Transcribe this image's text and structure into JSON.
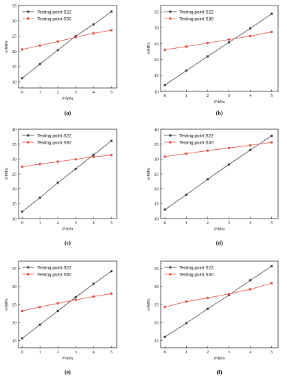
{
  "chart_data": [
    {
      "type": "line",
      "caption": "(a)",
      "xlabel_var": "P",
      "xlabel_unit": "/kPa",
      "ylabel_var": "σ",
      "ylabel_unit": "/MPa",
      "x": [
        0,
        1,
        2,
        3,
        4,
        5
      ],
      "xlim": [
        -0.2,
        5.3
      ],
      "ylim": [
        8,
        35
      ],
      "yticks": [
        10,
        15,
        20,
        25,
        30,
        35
      ],
      "legend_position": "top-left",
      "series": [
        {
          "name": "Testing point S22",
          "marker": "square",
          "color": "#333333",
          "values": [
            11.2,
            15.8,
            20.4,
            25.0,
            28.8,
            33.0
          ]
        },
        {
          "name": "Testing point S30",
          "marker": "circle",
          "color": "#e0453a",
          "values": [
            20.6,
            21.9,
            23.2,
            24.6,
            25.9,
            26.9
          ]
        }
      ]
    },
    {
      "type": "line",
      "caption": "(b)",
      "xlabel_var": "P",
      "xlabel_unit": "/kPa",
      "ylabel_var": "σ",
      "ylabel_unit": "/MPa",
      "x": [
        0,
        1,
        2,
        3,
        4,
        5
      ],
      "xlim": [
        -0.2,
        5.3
      ],
      "ylim": [
        10,
        37
      ],
      "yticks": [
        10,
        15,
        20,
        25,
        30,
        35
      ],
      "legend_position": "top-left",
      "series": [
        {
          "name": "Testing point S22",
          "marker": "square",
          "color": "#333333",
          "values": [
            12.0,
            16.5,
            21.0,
            25.4,
            29.8,
            34.4
          ]
        },
        {
          "name": "Testing point S30",
          "marker": "circle",
          "color": "#e0453a",
          "values": [
            23.1,
            24.1,
            25.2,
            26.3,
            27.4,
            28.7
          ]
        }
      ]
    },
    {
      "type": "line",
      "caption": "(c)",
      "xlabel_var": "P",
      "xlabel_unit": "/kPa",
      "ylabel_var": "σ",
      "ylabel_unit": "/MPa",
      "x": [
        0,
        1,
        2,
        3,
        4,
        5
      ],
      "xlim": [
        -0.2,
        5.3
      ],
      "ylim": [
        10,
        40
      ],
      "yticks": [
        10,
        15,
        20,
        25,
        30,
        35,
        40
      ],
      "legend_position": "top-left",
      "series": [
        {
          "name": "Testing point S22",
          "marker": "square",
          "color": "#333333",
          "values": [
            12.3,
            17.0,
            22.0,
            26.7,
            31.4,
            36.1
          ]
        },
        {
          "name": "Testing point S30",
          "marker": "circle",
          "color": "#e0453a",
          "values": [
            27.4,
            28.3,
            29.1,
            29.9,
            30.7,
            31.3
          ]
        }
      ]
    },
    {
      "type": "line",
      "caption": "(d)",
      "xlabel_var": "P",
      "xlabel_unit": "/kPa",
      "ylabel_var": "σ",
      "ylabel_unit": "/MPa",
      "x": [
        0,
        1,
        2,
        3,
        4,
        5
      ],
      "xlim": [
        -0.2,
        5.3
      ],
      "ylim": [
        10,
        40
      ],
      "yticks": [
        10,
        15,
        20,
        25,
        30,
        35,
        40
      ],
      "legend_position": "top-left",
      "series": [
        {
          "name": "Testing point S22",
          "marker": "square",
          "color": "#333333",
          "values": [
            13.0,
            18.0,
            23.2,
            28.2,
            33.0,
            37.8
          ]
        },
        {
          "name": "Testing point S30",
          "marker": "circle",
          "color": "#e0453a",
          "values": [
            30.8,
            31.8,
            32.8,
            33.7,
            34.6,
            35.6
          ]
        }
      ]
    },
    {
      "type": "line",
      "caption": "(e)",
      "xlabel_var": "P",
      "xlabel_unit": "/kPa",
      "ylabel_var": "σ",
      "ylabel_unit": "/MPa",
      "x": [
        0,
        1,
        2,
        3,
        4,
        5
      ],
      "xlim": [
        -0.2,
        5.3
      ],
      "ylim": [
        13,
        37
      ],
      "yticks": [
        15,
        20,
        25,
        30,
        35
      ],
      "legend_position": "top-left",
      "series": [
        {
          "name": "Testing point S22",
          "marker": "square",
          "color": "#333333",
          "values": [
            15.6,
            19.4,
            23.2,
            27.0,
            30.7,
            34.2
          ]
        },
        {
          "name": "Testing point S30",
          "marker": "circle",
          "color": "#e0453a",
          "values": [
            23.2,
            24.3,
            25.3,
            26.3,
            27.2,
            28.0
          ]
        }
      ]
    },
    {
      "type": "line",
      "caption": "(f)",
      "xlabel_var": "P",
      "xlabel_unit": "/kPa",
      "ylabel_var": "σ",
      "ylabel_unit": "/MPa",
      "x": [
        0,
        1,
        2,
        3,
        4,
        5
      ],
      "xlim": [
        -0.2,
        5.3
      ],
      "ylim": [
        13,
        37
      ],
      "yticks": [
        15,
        20,
        25,
        30,
        35
      ],
      "legend_position": "top-left",
      "series": [
        {
          "name": "Testing point S22",
          "marker": "square",
          "color": "#333333",
          "values": [
            16.0,
            19.8,
            23.8,
            27.6,
            31.7,
            35.6
          ]
        },
        {
          "name": "Testing point S30",
          "marker": "circle",
          "color": "#e0453a",
          "values": [
            24.3,
            25.8,
            26.8,
            27.9,
            29.2,
            30.9
          ]
        }
      ]
    }
  ]
}
